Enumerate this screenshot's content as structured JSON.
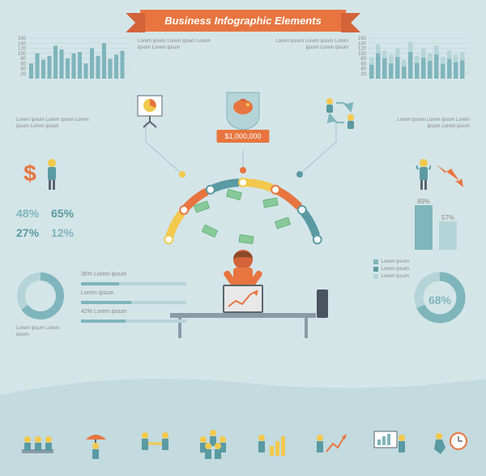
{
  "title": "Business Infographic Elements",
  "colors": {
    "bg": "#d4e5e8",
    "accent": "#e8753f",
    "teal": "#7fb5bc",
    "teal_dark": "#5a9aa3",
    "teal_light": "#b5d4d8",
    "yellow": "#f2c94c",
    "green": "#88c999",
    "gray": "#8a9ba8",
    "text_muted": "#888"
  },
  "price_tag": "$1,000,000",
  "lorem": "Lorem ipsum Lorem ipsum Lorem ipsum Lorem ipsum",
  "top_left_chart": {
    "type": "bar",
    "ylim": [
      0,
      160
    ],
    "yticks": [
      20,
      40,
      60,
      80,
      100,
      120,
      140,
      160
    ],
    "values": [
      60,
      100,
      75,
      90,
      130,
      115,
      80,
      100,
      105,
      60,
      120,
      90,
      140,
      78,
      95,
      110
    ],
    "bar_color": "#7fb5bc",
    "grid_color": "#b5d4d8"
  },
  "top_right_chart": {
    "type": "bar_stacked",
    "ylim": [
      0,
      160
    ],
    "yticks": [
      20,
      40,
      60,
      80,
      100,
      120,
      140,
      160
    ],
    "pairs": [
      [
        85,
        55
      ],
      [
        135,
        100
      ],
      [
        110,
        80
      ],
      [
        95,
        60
      ],
      [
        120,
        85
      ],
      [
        75,
        48
      ],
      [
        145,
        105
      ],
      [
        90,
        62
      ],
      [
        118,
        82
      ],
      [
        100,
        70
      ],
      [
        130,
        95
      ],
      [
        85,
        58
      ],
      [
        112,
        78
      ],
      [
        95,
        65
      ],
      [
        105,
        72
      ]
    ],
    "colors": [
      "#7fb5bc",
      "#b5d4d8"
    ],
    "grid_color": "#b5d4d8"
  },
  "stat_grid": {
    "values": [
      "48%",
      "65%",
      "27%",
      "12%"
    ]
  },
  "bar_chart_right": {
    "type": "bar",
    "values": [
      89,
      57
    ],
    "labels": [
      "89%",
      "57%"
    ],
    "colors": [
      "#7fb5bc",
      "#b5d4d8"
    ]
  },
  "pct_bars": [
    {
      "pct": 36,
      "label": "36% Lorem ipsum"
    },
    {
      "pct": 48,
      "label": "Lorem ipsum"
    },
    {
      "pct": 42,
      "label": "42% Lorem ipsum"
    }
  ],
  "donut_left": {
    "type": "donut",
    "segments": [
      {
        "pct": 65,
        "color": "#7fb5bc"
      },
      {
        "pct": 35,
        "color": "#b5d4d8"
      }
    ],
    "lorem": "Lorem ipsum Lorem ipsum"
  },
  "donut_right": {
    "type": "donut",
    "pct": 68,
    "label": "68%",
    "color_fill": "#7fb5bc",
    "color_empty": "#b5d4d8"
  },
  "legend_right": [
    "Lorem ipsum",
    "Lorem ipsum",
    "Lorem ipsum"
  ],
  "arc_segments": [
    {
      "color": "#f2c94c"
    },
    {
      "color": "#e8753f"
    },
    {
      "color": "#5a9aa3"
    },
    {
      "color": "#f2c94c"
    },
    {
      "color": "#e8753f"
    },
    {
      "color": "#5a9aa3"
    }
  ],
  "footer_icons": [
    "meeting",
    "umbrella-person",
    "handshake",
    "team",
    "bar-chart-person",
    "growth-chart-person",
    "presentation",
    "running-clock"
  ]
}
